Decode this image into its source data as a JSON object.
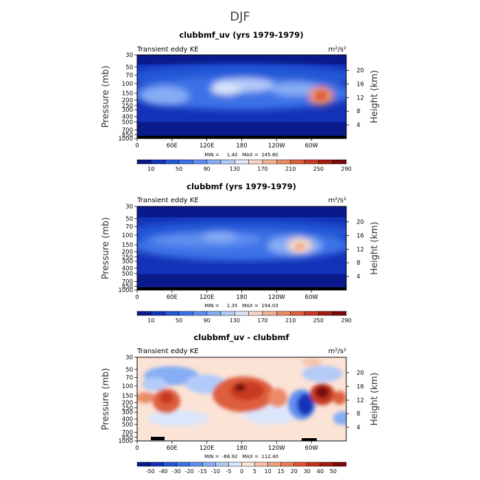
{
  "page": {
    "title": "DJF"
  },
  "chart_data": [
    {
      "type": "heatmap",
      "title": "clubbmf_uv (yrs 1979-1979)",
      "left_label": "Transient eddy KE",
      "units": "m²/s²",
      "ylabel": "Pressure (mb)",
      "ylabel_right": "Height (km)",
      "x_ticks": [
        "0",
        "60E",
        "120E",
        "180",
        "120W",
        "60W"
      ],
      "y_ticks": [
        "30",
        "50",
        "70",
        "100",
        "150",
        "200",
        "250",
        "300",
        "400",
        "500",
        "700",
        "850",
        "1000"
      ],
      "height_ticks": [
        "20",
        "16",
        "12",
        "8",
        "4"
      ],
      "stats": "MIN =     1.40   MAX =  245.80",
      "min": 1.4,
      "max": 245.8,
      "colorbar_labels": [
        "10",
        "50",
        "90",
        "130",
        "170",
        "210",
        "250",
        "290"
      ],
      "colorbar_colors": [
        "#0a1a8c",
        "#1233b8",
        "#2457d6",
        "#3d72e6",
        "#5e8ff0",
        "#86adf5",
        "#b3cbf8",
        "#dce6fa",
        "#f5d7c7",
        "#f2b195",
        "#eb8a67",
        "#de5f3d",
        "#c83a22",
        "#a41c0f",
        "#7a0808"
      ]
    },
    {
      "type": "heatmap",
      "title": "clubbmf (yrs 1979-1979)",
      "left_label": "Transient eddy KE",
      "units": "m²/s²",
      "ylabel": "Pressure (mb)",
      "ylabel_right": "Height (km)",
      "x_ticks": [
        "0",
        "60E",
        "120E",
        "180",
        "120W",
        "60W"
      ],
      "y_ticks": [
        "30",
        "50",
        "70",
        "100",
        "150",
        "200",
        "250",
        "300",
        "400",
        "500",
        "700",
        "850",
        "1000"
      ],
      "height_ticks": [
        "20",
        "16",
        "12",
        "8",
        "4"
      ],
      "stats": "MIN =     1.35   MAX =  194.03",
      "min": 1.35,
      "max": 194.03,
      "colorbar_labels": [
        "10",
        "50",
        "90",
        "130",
        "170",
        "210",
        "250",
        "290"
      ],
      "colorbar_colors": [
        "#0a1a8c",
        "#1233b8",
        "#2457d6",
        "#3d72e6",
        "#5e8ff0",
        "#86adf5",
        "#b3cbf8",
        "#dce6fa",
        "#f5d7c7",
        "#f2b195",
        "#eb8a67",
        "#de5f3d",
        "#c83a22",
        "#a41c0f",
        "#7a0808"
      ]
    },
    {
      "type": "heatmap",
      "title": "clubbmf_uv - clubbmf",
      "left_label": "Transient eddy KE",
      "units": "m²/s²",
      "ylabel": "Pressure (mb)",
      "ylabel_right": "Height (km)",
      "x_ticks": [
        "0",
        "60E",
        "120E",
        "180",
        "120W",
        "60W"
      ],
      "y_ticks": [
        "30",
        "50",
        "70",
        "100",
        "150",
        "200",
        "250",
        "300",
        "400",
        "500",
        "700",
        "850",
        "1000"
      ],
      "height_ticks": [
        "20",
        "16",
        "12",
        "8",
        "4"
      ],
      "stats": "MIN =  -66.92   MAX =  112.40",
      "min": -66.92,
      "max": 112.4,
      "colorbar_labels": [
        "-50",
        "-40",
        "-30",
        "-20",
        "-15",
        "-10",
        "-5",
        "0",
        "5",
        "10",
        "15",
        "20",
        "30",
        "40",
        "50"
      ],
      "colorbar_colors": [
        "#0a1a8c",
        "#1233b8",
        "#2457d6",
        "#3d72e6",
        "#5e8ff0",
        "#86adf5",
        "#b3cbf8",
        "#dce6fa",
        "#fbe3d6",
        "#f5c3aa",
        "#f2a07e",
        "#eb7d55",
        "#de5533",
        "#c8321c",
        "#a41c0f",
        "#7a0808"
      ]
    }
  ]
}
